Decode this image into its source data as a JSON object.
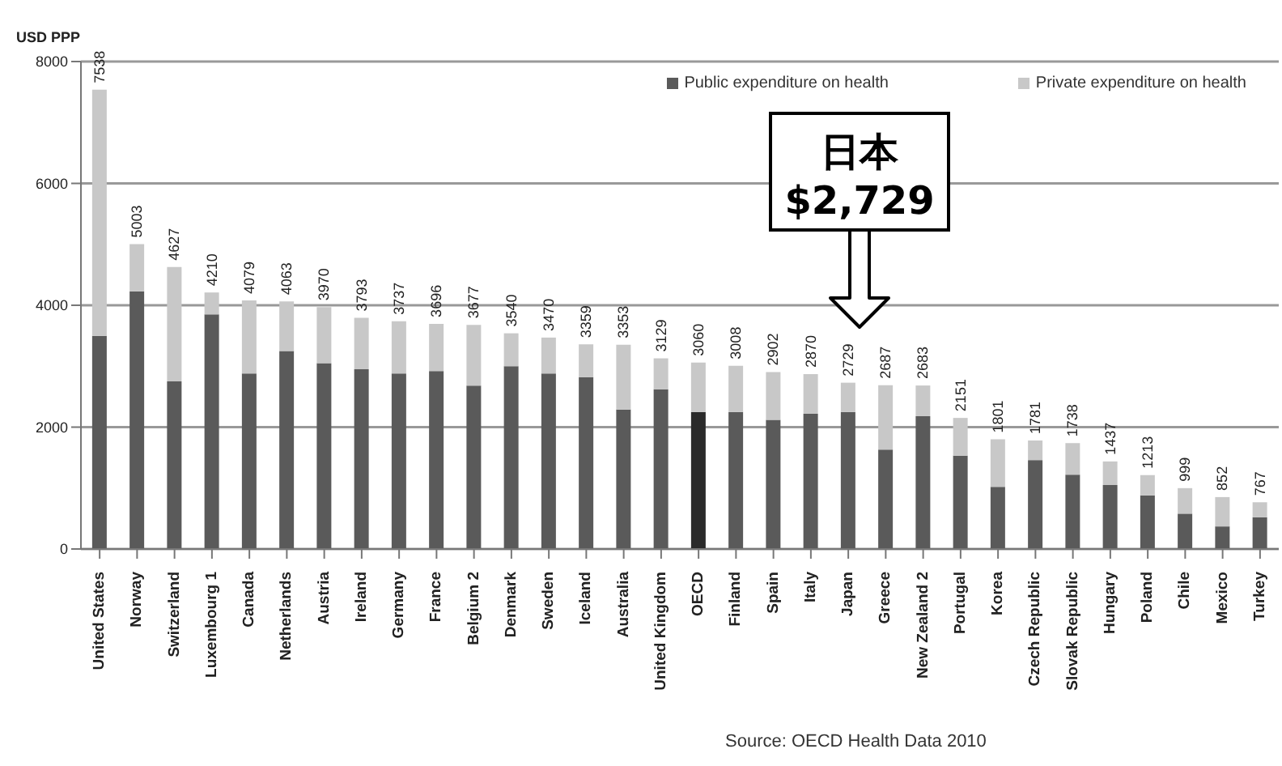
{
  "chart_data": {
    "type": "bar",
    "stacked": true,
    "ylabel": "USD PPP",
    "categories": [
      "United States",
      "Norway",
      "Switzerland",
      "Luxembourg 1",
      "Canada",
      "Netherlands",
      "Austria",
      "Ireland",
      "Germany",
      "France",
      "Belgium 2",
      "Denmark",
      "Sweden",
      "Iceland",
      "Australia",
      "United Kingdom",
      "OECD",
      "Finland",
      "Spain",
      "Italy",
      "Japan",
      "Greece",
      "New Zealand 2",
      "Portugal",
      "Korea",
      "Czech Republic",
      "Slovak Republic",
      "Hungary",
      "Poland",
      "Chile",
      "Mexico",
      "Turkey"
    ],
    "series": [
      {
        "name": "Public expenditure on health",
        "color": "#5a5a5a",
        "colors": [
          "#5a5a5a",
          "#5a5a5a",
          "#5a5a5a",
          "#5a5a5a",
          "#5a5a5a",
          "#5a5a5a",
          "#5a5a5a",
          "#5a5a5a",
          "#5a5a5a",
          "#5a5a5a",
          "#5a5a5a",
          "#5a5a5a",
          "#5a5a5a",
          "#5a5a5a",
          "#5a5a5a",
          "#5a5a5a",
          "#2a2a2a",
          "#5a5a5a",
          "#5a5a5a",
          "#5a5a5a",
          "#5a5a5a",
          "#5a5a5a",
          "#5a5a5a",
          "#5a5a5a",
          "#5a5a5a",
          "#5a5a5a",
          "#5a5a5a",
          "#5a5a5a",
          "#5a5a5a",
          "#5a5a5a",
          "#5a5a5a",
          "#5a5a5a"
        ],
        "values": [
          3500,
          4230,
          2750,
          3850,
          2880,
          3250,
          3050,
          2950,
          2880,
          2920,
          2680,
          3000,
          2880,
          2820,
          2290,
          2620,
          2250,
          2250,
          2120,
          2220,
          2250,
          1630,
          2180,
          1530,
          1020,
          1460,
          1220,
          1050,
          880,
          580,
          370,
          520
        ]
      },
      {
        "name": "Private expenditure on health",
        "color": "#c8c8c8",
        "values": [
          4038,
          773,
          1877,
          360,
          1199,
          813,
          920,
          843,
          857,
          776,
          997,
          540,
          590,
          539,
          1063,
          509,
          810,
          758,
          782,
          650,
          479,
          1057,
          503,
          621,
          781,
          321,
          518,
          387,
          333,
          419,
          482,
          247
        ]
      }
    ],
    "totals": [
      "7538",
      "5003",
      "4627",
      "4210",
      "4079",
      "4063",
      "3970",
      "3793",
      "3737",
      "3696",
      "3677",
      "3540",
      "3470",
      "3359",
      "3353",
      "3129",
      "3060",
      "3008",
      "2902",
      "2870",
      "2729",
      "2687",
      "2683",
      "2151",
      "1801",
      "1781",
      "1738",
      "1437",
      "1213",
      "999",
      "852",
      "767"
    ],
    "ylim": [
      0,
      8000
    ],
    "yticks": [
      0,
      2000,
      4000,
      6000,
      8000
    ],
    "grid": "y",
    "legend": "top right",
    "annotations": [
      "日本\n$2,729",
      "Source: OECD Health Data 2010"
    ]
  }
}
